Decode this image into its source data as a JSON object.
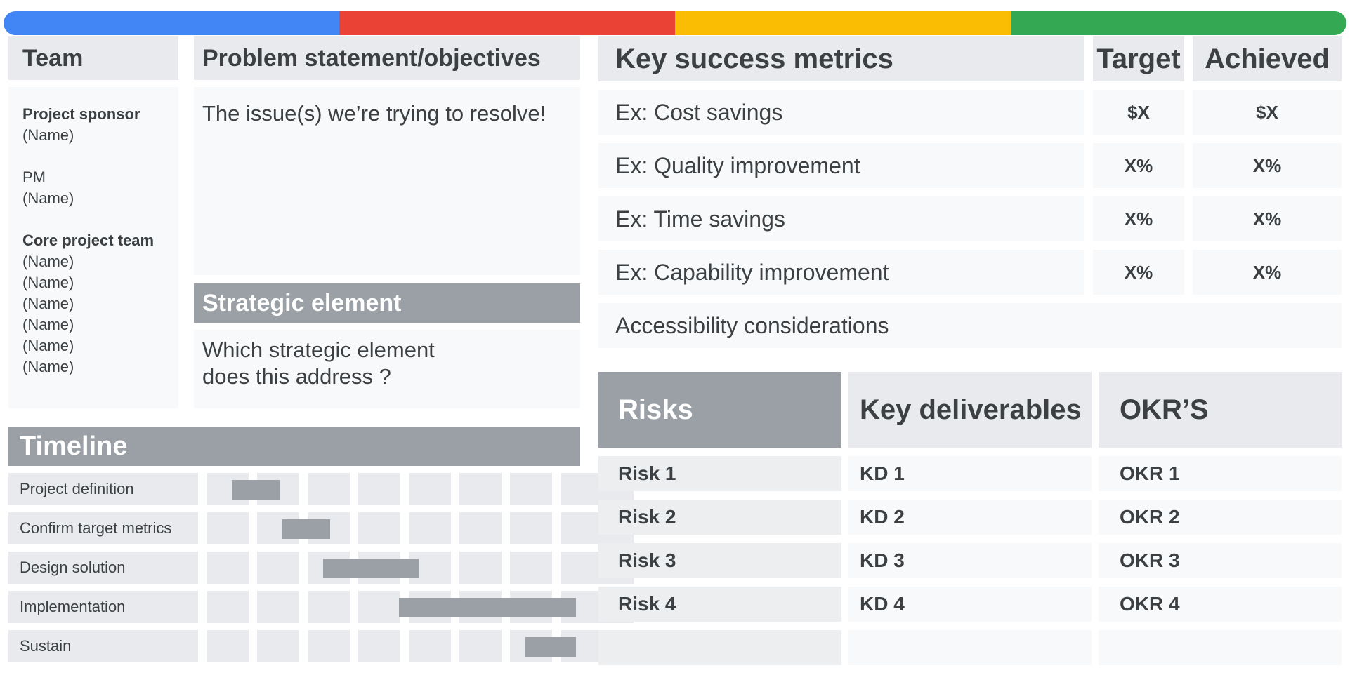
{
  "colors": {
    "blue": "#4285f4",
    "red": "#ea4335",
    "yellow": "#fbbc04",
    "green": "#34a853",
    "header_gray": "#9aa0a6",
    "header_light": "#e8eaed"
  },
  "team": {
    "title": "Team",
    "sponsor_label": "Project sponsor",
    "sponsor_name": "(Name)",
    "pm_label": "PM",
    "pm_name": "(Name)",
    "core_label": "Core project team",
    "core_names": [
      "(Name)",
      "(Name)",
      "(Name)",
      "(Name)",
      "(Name)",
      "(Name)"
    ]
  },
  "problem": {
    "title": "Problem statement/objectives",
    "body": "The issue(s) we’re trying to resolve!"
  },
  "strategic": {
    "title": "Strategic element",
    "body_line1": "Which strategic element",
    "body_line2": "does this address ?"
  },
  "timeline": {
    "title": "Timeline",
    "tasks": [
      {
        "label": "Project definition",
        "start": 0.5,
        "end": 1.45
      },
      {
        "label": "Confirm target metrics",
        "start": 1.5,
        "end": 2.45
      },
      {
        "label": "Design solution",
        "start": 2.3,
        "end": 4.2
      },
      {
        "label": "Implementation",
        "start": 3.8,
        "end": 7.3
      },
      {
        "label": "Sustain",
        "start": 6.3,
        "end": 7.3
      }
    ]
  },
  "metrics": {
    "header": "Key success metrics",
    "target_header": "Target",
    "achieved_header": "Achieved",
    "rows": [
      {
        "label": "Ex: Cost savings",
        "target": "$X",
        "achieved": "$X"
      },
      {
        "label": "Ex: Quality improvement",
        "target": "X%",
        "achieved": "X%"
      },
      {
        "label": "Ex: Time savings",
        "target": "X%",
        "achieved": "X%"
      },
      {
        "label": "Ex: Capability improvement",
        "target": "X%",
        "achieved": "X%"
      }
    ],
    "accessibility": "Accessibility considerations"
  },
  "rko": {
    "risks_header": "Risks",
    "kd_header": "Key deliverables",
    "okr_header": "OKR’S",
    "rows": [
      {
        "risk": "Risk 1",
        "kd": "KD 1",
        "okr": "OKR 1"
      },
      {
        "risk": "Risk 2",
        "kd": "KD 2",
        "okr": "OKR 2"
      },
      {
        "risk": "Risk 3",
        "kd": "KD 3",
        "okr": "OKR 3"
      },
      {
        "risk": "Risk 4",
        "kd": "KD 4",
        "okr": "OKR 4"
      }
    ]
  }
}
